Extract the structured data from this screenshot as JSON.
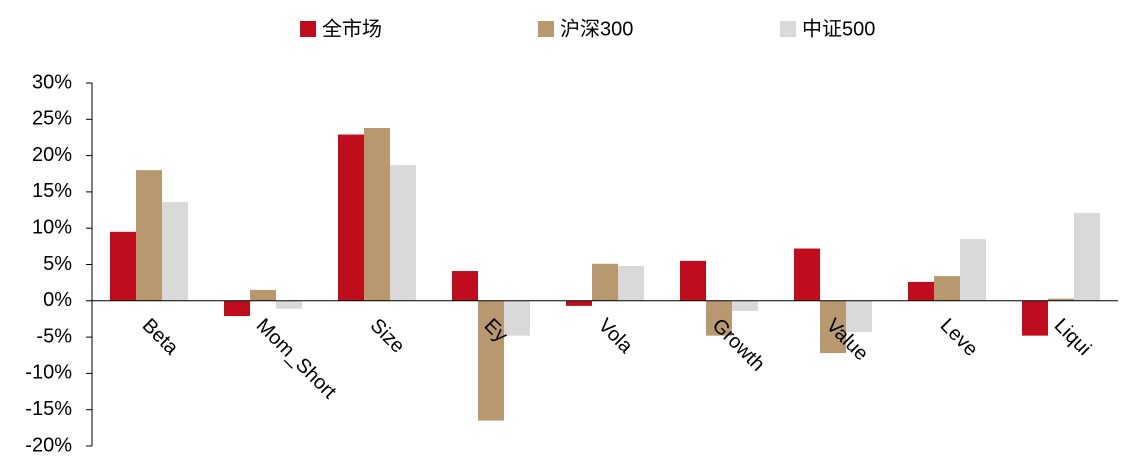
{
  "chart_data": {
    "type": "bar",
    "categories": [
      "Beta",
      "Mom_Short",
      "Size",
      "Ey",
      "Vola",
      "Growth",
      "Value",
      "Leve",
      "Liqui"
    ],
    "series": [
      {
        "name": "全市场",
        "color": "#c00d1e",
        "values": [
          9.5,
          -2.1,
          22.9,
          4.1,
          -0.7,
          5.5,
          7.2,
          2.6,
          -4.8
        ]
      },
      {
        "name": "沪深300",
        "color": "#b8986e",
        "values": [
          18.0,
          1.5,
          23.8,
          -16.5,
          5.1,
          -4.8,
          -7.2,
          3.4,
          0.3
        ]
      },
      {
        "name": "中证500",
        "color": "#d9d9d9",
        "values": [
          13.6,
          -1.1,
          18.7,
          -4.8,
          4.8,
          -1.4,
          -4.3,
          8.5,
          12.1
        ]
      }
    ],
    "ylim": [
      -20,
      30
    ],
    "yticks": [
      {
        "value": -20,
        "label": "-20%"
      },
      {
        "value": -15,
        "label": "-15%"
      },
      {
        "value": -10,
        "label": "-10%"
      },
      {
        "value": -5,
        "label": "-5%"
      },
      {
        "value": 0,
        "label": "0%"
      },
      {
        "value": 5,
        "label": "5%"
      },
      {
        "value": 10,
        "label": "10%"
      },
      {
        "value": 15,
        "label": "15%"
      },
      {
        "value": 20,
        "label": "20%"
      },
      {
        "value": 25,
        "label": "25%"
      },
      {
        "value": 30,
        "label": "30%"
      }
    ],
    "grid": false,
    "legend": "top"
  }
}
